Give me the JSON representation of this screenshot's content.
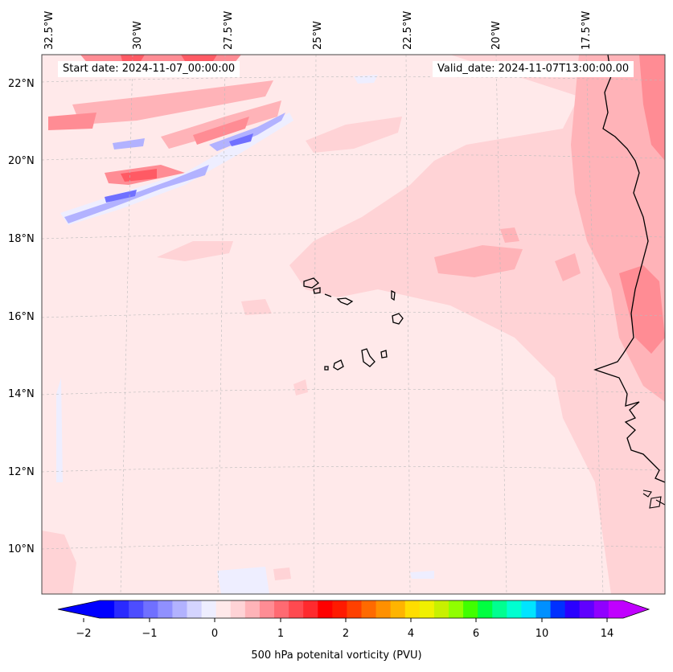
{
  "map": {
    "start_date_text": "Start date: 2024-11-07_00:00:00",
    "valid_date_text": "Valid_date: 2024-11-07T13:00:00.00",
    "longitude_labels": [
      "32.5°W",
      "30°W",
      "27.5°W",
      "25°W",
      "22.5°W",
      "20°W",
      "17.5°W"
    ],
    "latitude_labels": [
      "22°N",
      "20°N",
      "18°N",
      "16°N",
      "14°N",
      "12°N",
      "10°N"
    ],
    "field_colors": {
      "background": "#ffe9ea",
      "light_pink": "#ffd3d6",
      "pink": "#ffb3b8",
      "medium_red": "#ff8c94",
      "red": "#ff5a64",
      "light_blue": "#eeeeff",
      "blue": "#b2b2ff",
      "dark_blue": "#7070ff",
      "coastline": "#000000"
    }
  },
  "colorbar": {
    "label": "500 hPa potenital vorticity (PVU)",
    "tick_labels": [
      "−2",
      "−1",
      "0",
      "1",
      "2",
      "4",
      "6",
      "10",
      "14"
    ],
    "colors": [
      "#0000ff",
      "#2a2aff",
      "#4d4dff",
      "#7070ff",
      "#9090ff",
      "#b2b2ff",
      "#d4d4ff",
      "#eeeeff",
      "#ffe9ea",
      "#ffd3d6",
      "#ffb3b8",
      "#ff8c94",
      "#ff6a72",
      "#ff4a50",
      "#ff2a2e",
      "#ff0000",
      "#ff1a00",
      "#ff4000",
      "#ff6a00",
      "#ff9000",
      "#ffb400",
      "#ffdd00",
      "#f0f000",
      "#c8f000",
      "#90ff00",
      "#40ff00",
      "#00ff40",
      "#00ff90",
      "#00ffd0",
      "#00e4ff",
      "#0090ff",
      "#0030ff",
      "#2a00ff",
      "#6000ff",
      "#9000ff",
      "#c000ff"
    ]
  }
}
